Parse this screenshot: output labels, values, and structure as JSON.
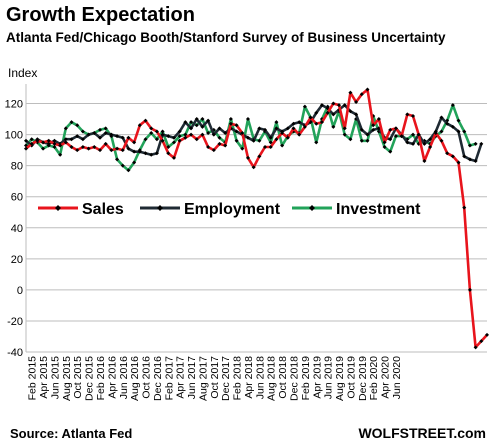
{
  "header": {
    "title": "Growth Expectation",
    "subtitle": "Atlanta Fed/Chicago Booth/Stanford Survey of Business Uncertainty"
  },
  "footer": {
    "source": "Source: Atlanta Fed",
    "brand": "WOLFSTREET.com"
  },
  "colors": {
    "sales": "#e8141c",
    "employment": "#1f2a33",
    "investment": "#22a35a",
    "grid": "#bdbdbd",
    "marker": "#000000"
  },
  "chart_data": {
    "type": "line",
    "title": "Growth Expectation",
    "ylabel": "Index",
    "ylim": [
      -40,
      130
    ],
    "yticks": [
      -40,
      -20,
      0,
      20,
      40,
      60,
      80,
      100,
      120
    ],
    "grid": true,
    "legend": "middle-left",
    "x_labels": [
      "Feb 2015",
      "Apr 2015",
      "Jun 2015",
      "Aug 2015",
      "Oct 2015",
      "Dec 2015",
      "Feb 2016",
      "Apr 2016",
      "Jun 2016",
      "Aug 2016",
      "Oct 2016",
      "Dec 2016",
      "Feb 2017",
      "Apr 2017",
      "Jun 2017",
      "Aug 2017",
      "Oct 2017",
      "Dec 2017",
      "Feb 2018",
      "Apr 2018",
      "Jun 2018",
      "Aug 2018",
      "Oct 2018",
      "Dec 2018",
      "Feb 2019",
      "Apr 2019",
      "Jun 2019",
      "Aug 2019",
      "Oct 2019",
      "Dec 2019",
      "Feb 2020",
      "Apr 2020",
      "Jun 2020"
    ],
    "x_start": "Jan 2015",
    "series": [
      {
        "name": "Sales",
        "color_key": "sales",
        "values": [
          91,
          94,
          96,
          95,
          96,
          94,
          93,
          95,
          92,
          90,
          92,
          91,
          92,
          90,
          94,
          90,
          91,
          90,
          98,
          95,
          106,
          109,
          104,
          102,
          96,
          88,
          85,
          96,
          98,
          100,
          97,
          100,
          92,
          90,
          94,
          93,
          107,
          106,
          101,
          85,
          79,
          86,
          92,
          92,
          97,
          101,
          98,
          104,
          100,
          105,
          111,
          107,
          108,
          114,
          120,
          119,
          104,
          127,
          121,
          126,
          129,
          106,
          110,
          95,
          103,
          104,
          99,
          113,
          112,
          100,
          83,
          92,
          101,
          96,
          88,
          86,
          82,
          53,
          0,
          -37,
          -33,
          -29
        ]
      },
      {
        "name": "Employment",
        "color_key": "employment",
        "values": [
          96,
          93,
          97,
          95,
          94,
          96,
          94,
          97,
          97,
          99,
          97,
          100,
          101,
          98,
          101,
          100,
          99,
          98,
          91,
          89,
          89,
          88,
          87,
          88,
          100,
          99,
          98,
          102,
          108,
          104,
          110,
          105,
          109,
          100,
          104,
          101,
          104,
          102,
          100,
          98,
          96,
          104,
          103,
          98,
          104,
          102,
          104,
          107,
          108,
          106,
          108,
          114,
          119,
          117,
          113,
          116,
          119,
          115,
          113,
          103,
          100,
          103,
          104,
          98,
          97,
          104,
          100,
          95,
          94,
          100,
          94,
          97,
          102,
          111,
          107,
          105,
          102,
          86,
          84,
          83,
          94
        ]
      },
      {
        "name": "Investment",
        "color_key": "investment",
        "values": [
          93,
          97,
          95,
          91,
          93,
          92,
          87,
          104,
          108,
          106,
          102,
          100,
          101,
          103,
          104,
          99,
          84,
          80,
          77,
          82,
          90,
          97,
          101,
          97,
          102,
          92,
          95,
          99,
          100,
          108,
          106,
          110,
          101,
          103,
          98,
          95,
          110,
          96,
          91,
          110,
          97,
          96,
          102,
          95,
          108,
          93,
          99,
          102,
          101,
          118,
          111,
          95,
          110,
          118,
          105,
          115,
          100,
          97,
          110,
          96,
          96,
          112,
          102,
          92,
          89,
          99,
          99,
          97,
          100,
          94,
          96,
          94,
          99,
          102,
          109,
          119,
          109,
          102,
          93,
          94
        ]
      }
    ]
  }
}
